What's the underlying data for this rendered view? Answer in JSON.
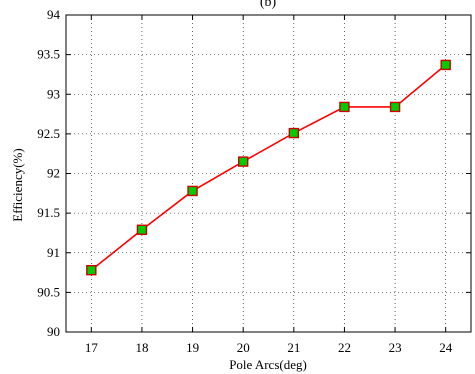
{
  "chart_data": {
    "type": "line",
    "title": "(b)",
    "xlabel": "Pole Arcs(deg)",
    "ylabel": "Efficiency(%)",
    "x": [
      17,
      18,
      19,
      20,
      21,
      22,
      23,
      24
    ],
    "x_ticks": [
      "17",
      "18",
      "19",
      "20",
      "21",
      "22",
      "23",
      "24"
    ],
    "xlim": [
      16.5,
      24.5
    ],
    "ylim": [
      90,
      94
    ],
    "y_ticks": [
      "90",
      "90.5",
      "91",
      "91.5",
      "92",
      "92.5",
      "93",
      "93.5",
      "94"
    ],
    "grid": true,
    "series": [
      {
        "values": [
          90.78,
          91.29,
          91.78,
          92.15,
          92.51,
          92.84,
          92.84,
          93.37
        ],
        "line_color": "#ff0000",
        "marker": "square",
        "marker_fill": "#00cc00",
        "marker_edge": "#cc0000"
      }
    ]
  }
}
